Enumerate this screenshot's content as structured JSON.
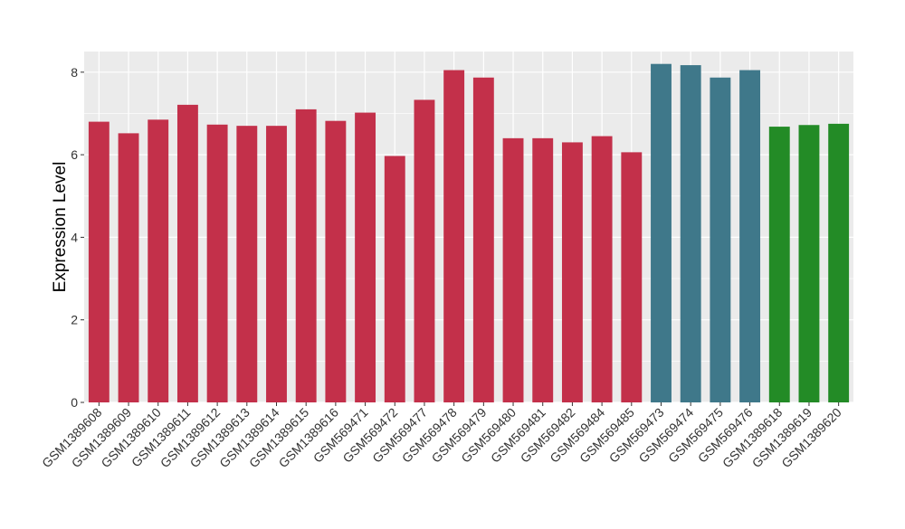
{
  "chart_data": {
    "type": "bar",
    "title": "",
    "xlabel": "",
    "ylabel": "Expression Level",
    "ylim": [
      0,
      8.5
    ],
    "yticks": [
      0,
      2,
      4,
      6,
      8
    ],
    "grid": true,
    "legend": "none",
    "categories": [
      "GSM1389608",
      "GSM1389609",
      "GSM1389610",
      "GSM1389611",
      "GSM1389612",
      "GSM1389613",
      "GSM1389614",
      "GSM1389615",
      "GSM1389616",
      "GSM569471",
      "GSM569472",
      "GSM569477",
      "GSM569478",
      "GSM569479",
      "GSM569480",
      "GSM569481",
      "GSM569482",
      "GSM569484",
      "GSM569485",
      "GSM569473",
      "GSM569474",
      "GSM569475",
      "GSM569476",
      "GSM1389618",
      "GSM1389619",
      "GSM1389620"
    ],
    "values": [
      6.8,
      6.52,
      6.85,
      7.21,
      6.73,
      6.7,
      6.7,
      7.1,
      6.82,
      7.02,
      5.97,
      7.33,
      8.05,
      7.87,
      6.4,
      6.4,
      6.3,
      6.45,
      6.06,
      8.2,
      8.17,
      7.87,
      8.05,
      6.68,
      6.72,
      6.75
    ],
    "bar_colors": [
      "#c3304a",
      "#c3304a",
      "#c3304a",
      "#c3304a",
      "#c3304a",
      "#c3304a",
      "#c3304a",
      "#c3304a",
      "#c3304a",
      "#c3304a",
      "#c3304a",
      "#c3304a",
      "#c3304a",
      "#c3304a",
      "#c3304a",
      "#c3304a",
      "#c3304a",
      "#c3304a",
      "#c3304a",
      "#3f788a",
      "#3f788a",
      "#3f788a",
      "#3f788a",
      "#238b26",
      "#238b26",
      "#238b26"
    ],
    "panel_background": "#ebebeb",
    "grid_color": "#ffffff"
  }
}
